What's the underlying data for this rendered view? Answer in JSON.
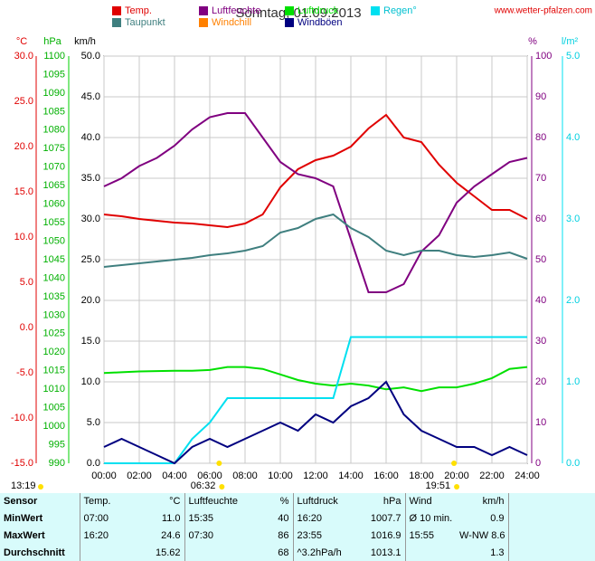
{
  "chart_data": {
    "type": "line",
    "title": "Sonntag, 01.09.2013",
    "source": "www.wetter-pfalzen.com",
    "axis_units": {
      "y": "°C",
      "y2": "hPa",
      "y3": "km/h",
      "y4": "%",
      "y5": "l/m²"
    },
    "x": [
      0,
      1,
      2,
      3,
      4,
      5,
      6,
      7,
      8,
      9,
      10,
      11,
      12,
      13,
      14,
      15,
      16,
      17,
      18,
      19,
      20,
      21,
      22,
      23,
      24
    ],
    "xlim": [
      0,
      24
    ],
    "xticks": [
      {
        "value": 0,
        "label": "00:00"
      },
      {
        "value": 2,
        "label": "02:00"
      },
      {
        "value": 4,
        "label": "04:00"
      },
      {
        "value": 6,
        "label": "06:00"
      },
      {
        "value": 8,
        "label": "08:00"
      },
      {
        "value": 10,
        "label": "10:00"
      },
      {
        "value": 12,
        "label": "12:00"
      },
      {
        "value": 14,
        "label": "14:00"
      },
      {
        "value": 16,
        "label": "16:00"
      },
      {
        "value": 18,
        "label": "18:00"
      },
      {
        "value": 20,
        "label": "20:00"
      },
      {
        "value": 22,
        "label": "22:00"
      },
      {
        "value": 24,
        "label": "24:00"
      }
    ],
    "ylim": [
      -15,
      30
    ],
    "yticks": [
      {
        "value": -15,
        "label": "-15.0"
      },
      {
        "value": -10,
        "label": "-10.0"
      },
      {
        "value": -5,
        "label": "-5.0"
      },
      {
        "value": 0,
        "label": "0.0"
      },
      {
        "value": 5,
        "label": "5.0"
      },
      {
        "value": 10,
        "label": "10.0"
      },
      {
        "value": 15,
        "label": "15.0"
      },
      {
        "value": 20,
        "label": "20.0"
      },
      {
        "value": 25,
        "label": "25.0"
      },
      {
        "value": 30,
        "label": "30.0"
      }
    ],
    "y2lim": [
      990,
      1100
    ],
    "y2ticks": [
      990,
      995,
      1000,
      1005,
      1010,
      1015,
      1020,
      1025,
      1030,
      1035,
      1040,
      1045,
      1050,
      1055,
      1060,
      1065,
      1070,
      1075,
      1080,
      1085,
      1090,
      1095,
      1100
    ],
    "y3lim": [
      0,
      50
    ],
    "y3ticks": [
      {
        "value": 0,
        "label": "0.0"
      },
      {
        "value": 5,
        "label": "5.0"
      },
      {
        "value": 10,
        "label": "10.0"
      },
      {
        "value": 15,
        "label": "15.0"
      },
      {
        "value": 20,
        "label": "20.0"
      },
      {
        "value": 25,
        "label": "25.0"
      },
      {
        "value": 30,
        "label": "30.0"
      },
      {
        "value": 35,
        "label": "35.0"
      },
      {
        "value": 40,
        "label": "40.0"
      },
      {
        "value": 45,
        "label": "45.0"
      },
      {
        "value": 50,
        "label": "50.0"
      }
    ],
    "y4lim": [
      0,
      100
    ],
    "y4ticks": [
      0,
      10,
      20,
      30,
      40,
      50,
      60,
      70,
      80,
      90,
      100
    ],
    "y5lim": [
      0,
      5
    ],
    "y5ticks": [
      {
        "value": 0,
        "label": "0.0"
      },
      {
        "value": 1,
        "label": "1.0"
      },
      {
        "value": 2,
        "label": "2.0"
      },
      {
        "value": 3,
        "label": "3.0"
      },
      {
        "value": 4,
        "label": "4.0"
      },
      {
        "value": 5,
        "label": "5.0"
      }
    ],
    "grid": true,
    "series": [
      {
        "name": "Temp.",
        "color": "#e00000",
        "axis": "y",
        "values": [
          12.5,
          12.3,
          12.0,
          11.8,
          11.6,
          11.5,
          11.3,
          11.1,
          11.5,
          12.5,
          15.5,
          17.5,
          18.5,
          19,
          20,
          22,
          23.5,
          21,
          20.5,
          18,
          16,
          14.5,
          13,
          13,
          12
        ]
      },
      {
        "name": "Luftfeuchte",
        "color": "#800080",
        "axis": "y4",
        "values": [
          68,
          70,
          73,
          75,
          78,
          82,
          85,
          86,
          86,
          80,
          74,
          71,
          70,
          68,
          55,
          42,
          42,
          44,
          52,
          56,
          64,
          68,
          71,
          74,
          75
        ]
      },
      {
        "name": "Luftdruck",
        "color": "#00e000",
        "axis": "y2",
        "values": [
          1014.4,
          1014.6,
          1014.8,
          1014.9,
          1015,
          1015,
          1015.2,
          1016,
          1016,
          1015.5,
          1014,
          1012.5,
          1011.5,
          1011,
          1011.5,
          1011,
          1010,
          1010.5,
          1009.5,
          1010.5,
          1010.5,
          1011.5,
          1013,
          1015.5,
          1016
        ]
      },
      {
        "name": "Regen°",
        "color": "#00e0f0",
        "axis": "y5",
        "values": [
          0,
          0,
          0,
          0,
          0,
          0.3,
          0.5,
          0.8,
          0.8,
          0.8,
          0.8,
          0.8,
          0.8,
          0.8,
          1.55,
          1.55,
          1.55,
          1.55,
          1.55,
          1.55,
          1.55,
          1.55,
          1.55,
          1.55,
          1.55
        ]
      },
      {
        "name": "Taupunkt",
        "color": "#3f7f7f",
        "axis": "y",
        "values": [
          6.7,
          6.9,
          7.1,
          7.3,
          7.5,
          7.7,
          8,
          8.2,
          8.5,
          9,
          10.5,
          11,
          12,
          12.5,
          11,
          10,
          8.5,
          8,
          8.5,
          8.5,
          8,
          7.8,
          8,
          8.3,
          7.6
        ]
      },
      {
        "name": "Windchill",
        "color": "#ff8000",
        "axis": "y",
        "values": [
          null,
          null,
          null,
          null,
          null,
          null,
          null,
          null,
          null,
          null,
          null,
          null,
          null,
          null,
          null,
          null,
          null,
          null,
          null,
          null,
          null,
          null,
          null,
          null,
          null
        ]
      },
      {
        "name": "Windböen",
        "color": "#000080",
        "axis": "y3",
        "values": [
          2,
          3,
          2,
          1,
          0,
          2,
          3,
          2,
          3,
          4,
          5,
          4,
          6,
          5,
          7,
          8,
          10,
          6,
          4,
          3,
          2,
          2,
          1,
          2,
          1
        ]
      }
    ],
    "markers": [
      {
        "x": 6.53,
        "label": "06:32"
      },
      {
        "x": 19.85,
        "label": "19:51"
      }
    ],
    "day_length": "13:19"
  },
  "table": {
    "header": [
      "Sensor",
      "Temp.",
      "°C",
      "Luftfeuchte",
      "%",
      "Luftdruck",
      "hPa",
      "Wind",
      "km/h"
    ],
    "rows": [
      [
        "MinWert",
        "07:00",
        "11.0",
        "15:35",
        "40",
        "16:20",
        "1007.7",
        "Ø 10 min.",
        "0.9"
      ],
      [
        "MaxWert",
        "16:20",
        "24.6",
        "07:30",
        "86",
        "23:55",
        "1016.9",
        "15:55",
        "W-NW 8.6"
      ],
      [
        "Durchschnitt",
        null,
        "15.62",
        null,
        "68",
        "^3.2hPa/h",
        "1013.1",
        null,
        "1.3"
      ]
    ]
  }
}
